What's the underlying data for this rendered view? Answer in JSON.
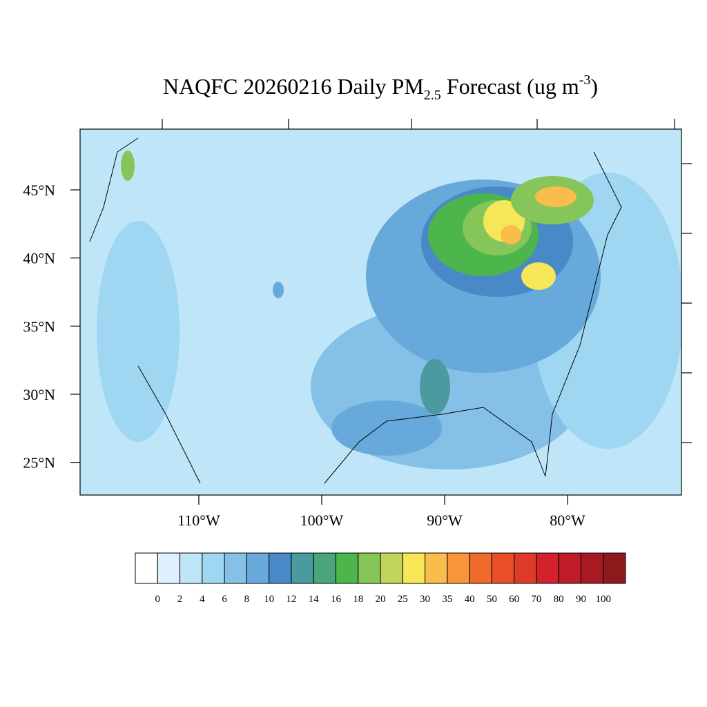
{
  "map": {
    "title_parts": {
      "main": "NAQFC 20260216 Daily PM",
      "sub": "2.5",
      "mid": " Forecast (ug m",
      "sup": "-3",
      "end": ")"
    },
    "latlim": [
      22.6,
      49.46
    ],
    "lonlim": [
      -119.66,
      -70.73
    ],
    "lat_ticks": [
      {
        "value": 25,
        "label": "25°N"
      },
      {
        "value": 30,
        "label": "30°N"
      },
      {
        "value": 35,
        "label": "35°N"
      },
      {
        "value": 40,
        "label": "40°N"
      },
      {
        "value": 45,
        "label": "45°N"
      }
    ],
    "lon_ticks": [
      {
        "value": -110,
        "label": "110°W"
      },
      {
        "value": -100,
        "label": "100°W"
      },
      {
        "value": -90,
        "label": "90°W"
      },
      {
        "value": -80,
        "label": "80°W"
      }
    ],
    "colorbar": {
      "levels": [
        0,
        2,
        4,
        6,
        8,
        10,
        12,
        14,
        16,
        18,
        20,
        25,
        30,
        35,
        40,
        50,
        60,
        70,
        80,
        90,
        100
      ],
      "colors": [
        "#ffffff",
        "#ddf0fb",
        "#bfe6f8",
        "#9fd7f3",
        "#85c1e6",
        "#67a9da",
        "#4a89c7",
        "#4a9aa0",
        "#4aa57a",
        "#4cb54c",
        "#85c55a",
        "#c2d45b",
        "#f6e758",
        "#f8bd4b",
        "#f7953a",
        "#f26a2b",
        "#e84f2a",
        "#de3a28",
        "#d3222b",
        "#be1c27",
        "#a81a22",
        "#8d1a1c"
      ]
    }
  }
}
